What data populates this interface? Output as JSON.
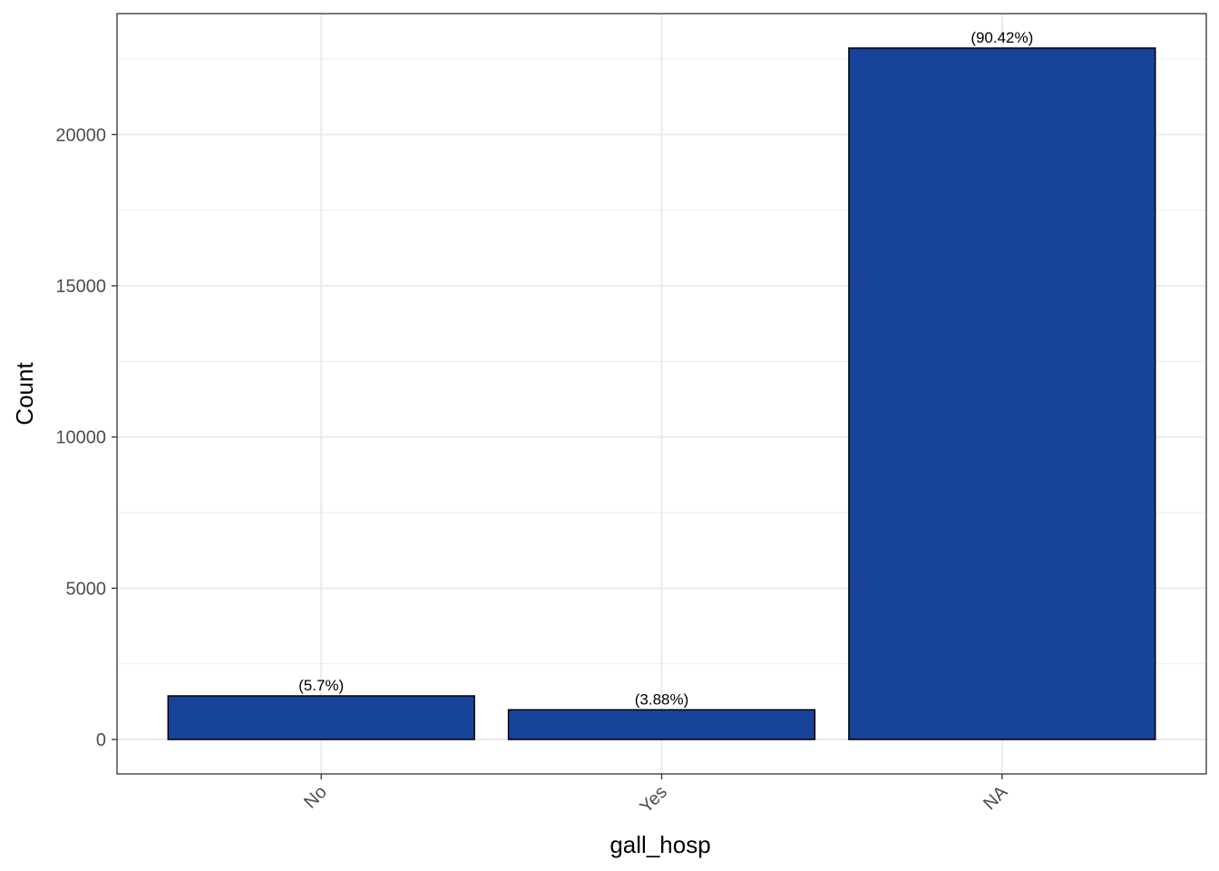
{
  "chart_data": {
    "type": "bar",
    "title": "",
    "xlabel": "gall_hosp",
    "ylabel": "Count",
    "categories": [
      "No",
      "Yes",
      "NA"
    ],
    "values": [
      1440,
      980,
      22860
    ],
    "data_labels": [
      "(5.7%)",
      "(3.88%)",
      "(90.42%)"
    ],
    "ylim": [
      -1140,
      24000
    ],
    "yticks": [
      0,
      5000,
      10000,
      15000,
      20000
    ],
    "ytick_labels": [
      "0",
      "5000",
      "10000",
      "15000",
      "20000"
    ],
    "grid": true,
    "legend": "none",
    "bar_color": "#17439A",
    "bar_edge_color": "#000000"
  }
}
